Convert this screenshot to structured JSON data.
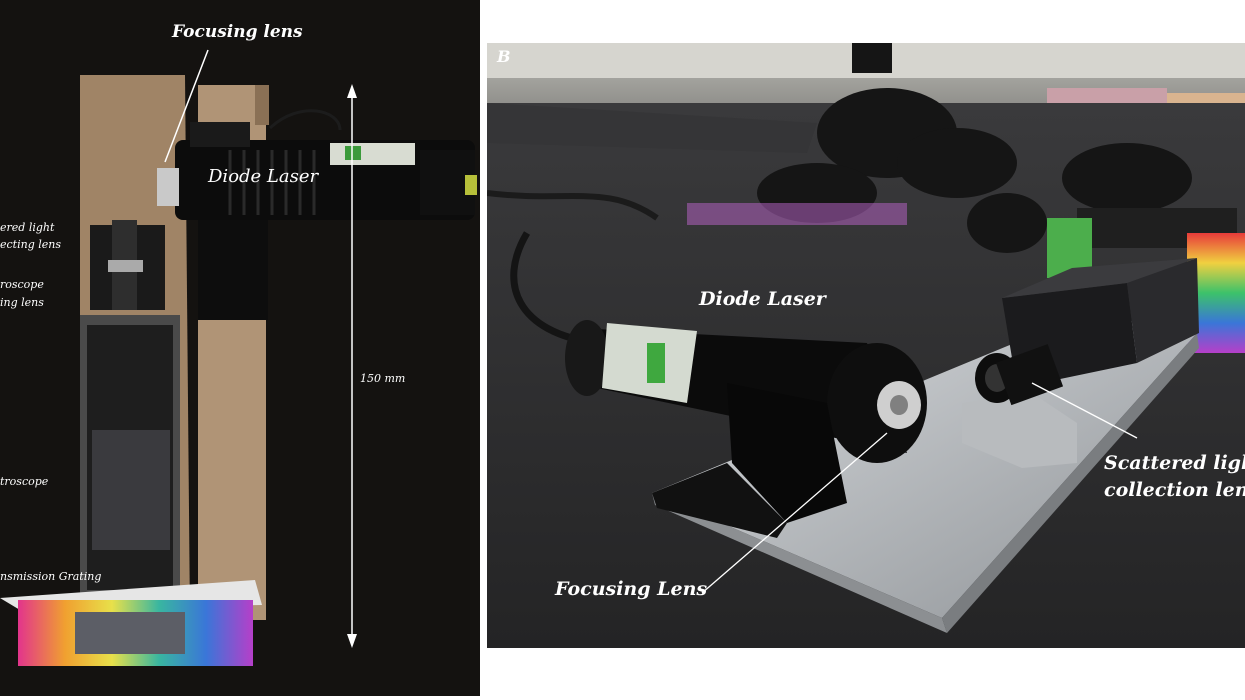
{
  "panel_a": {
    "labels": {
      "focusing_lens": "Focusing lens",
      "diode_laser": "Diode Laser",
      "scattered_light_lens_1": "ered light",
      "scattered_light_lens_2": "ecting lens",
      "spectroscope_lens_1": "roscope",
      "spectroscope_lens_2": "ing lens",
      "spectroscope": "troscope",
      "transmission_grating": "nsmission Grating",
      "length": "150 mm"
    }
  },
  "panel_b": {
    "panel_letter": "B",
    "labels": {
      "diode_laser": "Diode Laser",
      "focusing_lens": "Focusing Lens",
      "scattered_light_1": "Scattered light",
      "scattered_light_2": "collection lens"
    }
  },
  "colors": {
    "background_dark": "#141210",
    "laser_body": "#0c0c0c",
    "aluminum": "#b9bcc0",
    "wood": "#a08466",
    "label_text": "#ffffff"
  }
}
